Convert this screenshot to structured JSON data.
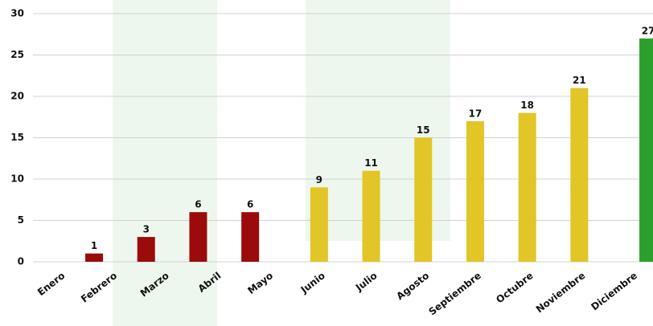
{
  "chart_data": {
    "type": "bar",
    "categories": [
      "Enero",
      "Febrero",
      "Marzo",
      "Abril",
      "Mayo",
      "Junio",
      "Julio",
      "Agosto",
      "Septiembre",
      "Octubre",
      "Noviembre",
      "Diciembre"
    ],
    "series": [
      {
        "color": "#9b0b0b",
        "values": [
          null,
          1,
          3,
          6,
          6,
          null,
          null,
          null,
          null,
          null,
          null,
          null
        ]
      },
      {
        "color": "#e2c526",
        "values": [
          null,
          null,
          null,
          null,
          null,
          9,
          11,
          15,
          17,
          18,
          21,
          null
        ]
      },
      {
        "color": "#2ca02c",
        "values": [
          null,
          null,
          null,
          null,
          null,
          null,
          null,
          null,
          null,
          null,
          null,
          27
        ]
      }
    ],
    "ylim": [
      0,
      30
    ],
    "yticks": [
      0,
      5,
      10,
      15,
      20,
      25,
      30
    ],
    "grid": true
  }
}
